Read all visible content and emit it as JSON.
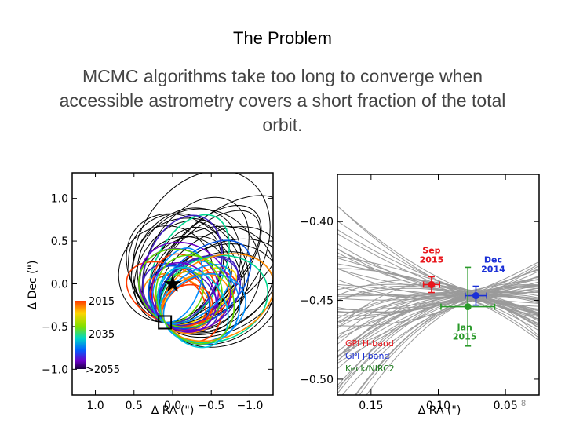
{
  "slide": {
    "title": "The Problem",
    "body": "MCMC algorithms take too long to converge when accessible astrometry covers a short fraction of the total orbit.",
    "page_number": "8"
  },
  "chart_data": [
    {
      "type": "line",
      "xlabel": "Δ RA (\")",
      "ylabel": "Δ Dec (\")",
      "xlim": [
        1.3,
        -1.3
      ],
      "ylim": [
        -1.3,
        1.3
      ],
      "x_ticks": [
        "1.0",
        "0.5",
        "0.0",
        "−0.5",
        "−1.0"
      ],
      "y_ticks": [
        "1.0",
        "0.5",
        "0.0",
        "−0.5",
        "−1.0"
      ],
      "colorbar_labels": [
        "2015",
        "2035",
        ">2055"
      ],
      "star_position": [
        0.0,
        0.0
      ],
      "planet_box_position": [
        0.1,
        -0.45
      ]
    },
    {
      "type": "scatter",
      "xlabel": "Δ RA (\")",
      "x_ticks": [
        "0.15",
        "0.10",
        "0.05"
      ],
      "y_ticks": [
        "−0.40",
        "−0.45",
        "−0.50"
      ],
      "xlim": [
        0.175,
        0.025
      ],
      "ylim": [
        -0.51,
        -0.37
      ],
      "points": [
        {
          "label": "Sep\n2015",
          "label_lines": [
            "Sep",
            "2015"
          ],
          "x": 0.105,
          "y": -0.44,
          "xerr": 0.006,
          "yerr": 0.005,
          "color": "#e8161c"
        },
        {
          "label": "Dec\n2014",
          "label_lines": [
            "Dec",
            "2014"
          ],
          "x": 0.072,
          "y": -0.447,
          "xerr": 0.008,
          "yerr": 0.006,
          "color": "#1a2fd6"
        },
        {
          "label": "Jan\n2015",
          "label_lines": [
            "Jan",
            "2015"
          ],
          "x": 0.078,
          "y": -0.454,
          "xerr": 0.02,
          "yerr": 0.025,
          "color": "#2a9a2a"
        }
      ],
      "legend": [
        {
          "name": "GPI H-band",
          "color": "#e8161c"
        },
        {
          "name": "GPI J-band",
          "color": "#1a2fd6"
        },
        {
          "name": "Keck/NIRC2",
          "color": "#1c7a1c"
        }
      ]
    }
  ]
}
